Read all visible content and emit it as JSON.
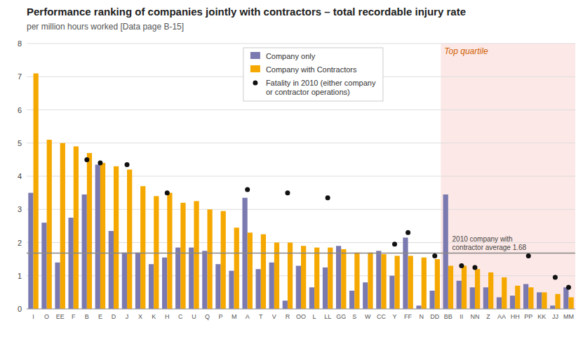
{
  "chart_data": {
    "type": "bar",
    "title": "Performance ranking of companies jointly with contractors – total recordable injury rate",
    "subtitle": "per million hours worked [Data page B-15]",
    "categories": [
      "I",
      "O",
      "EE",
      "F",
      "B",
      "E",
      "D",
      "J",
      "X",
      "K",
      "H",
      "C",
      "U",
      "Q",
      "P",
      "M",
      "A",
      "T",
      "V",
      "R",
      "OO",
      "L",
      "LL",
      "GG",
      "S",
      "W",
      "CC",
      "Y",
      "FF",
      "N",
      "DD",
      "BB",
      "II",
      "NN",
      "Z",
      "AA",
      "HH",
      "PP",
      "KK",
      "JJ",
      "MM"
    ],
    "series": [
      {
        "name": "Company only",
        "color": "#7b7ab0",
        "values": [
          3.5,
          2.6,
          1.4,
          2.75,
          3.45,
          4.35,
          2.35,
          1.7,
          1.7,
          1.35,
          1.55,
          1.85,
          1.85,
          1.75,
          1.35,
          1.15,
          3.35,
          1.2,
          1.4,
          0.25,
          1.3,
          0.65,
          1.25,
          1.9,
          0.55,
          0.8,
          1.75,
          1.0,
          2.15,
          0.1,
          0.55,
          3.45,
          0.85,
          0.65,
          0.65,
          0.35,
          0.4,
          0.75,
          0.5,
          0.1,
          0.65
        ]
      },
      {
        "name": "Company with Contractors",
        "color": "#f5a800",
        "values": [
          7.1,
          5.1,
          5.0,
          4.9,
          4.7,
          4.4,
          4.3,
          4.2,
          3.7,
          3.4,
          3.5,
          3.2,
          3.25,
          3.0,
          2.95,
          2.45,
          2.3,
          2.25,
          2.0,
          2.0,
          1.9,
          1.85,
          1.85,
          1.8,
          1.7,
          1.7,
          1.65,
          1.6,
          1.6,
          1.55,
          1.5,
          1.3,
          1.3,
          1.2,
          1.1,
          0.95,
          0.7,
          0.65,
          0.5,
          0.45,
          0.35
        ]
      },
      {
        "name": "Fatality in 2010 (either company\nor contractor operations)",
        "type": "scatter",
        "marker": "circle",
        "color": "#111111",
        "values": [
          null,
          null,
          null,
          null,
          4.5,
          4.4,
          null,
          4.35,
          null,
          null,
          3.5,
          null,
          null,
          null,
          null,
          null,
          3.6,
          null,
          null,
          3.5,
          null,
          null,
          3.35,
          null,
          null,
          null,
          null,
          1.95,
          2.3,
          null,
          1.6,
          null,
          1.3,
          1.25,
          null,
          null,
          null,
          1.6,
          null,
          0.95,
          0.65
        ]
      }
    ],
    "reference_line": {
      "value": 1.68,
      "label": "2010 company with\ncontractor average 1.68",
      "color": "#888888"
    },
    "shaded_region": {
      "from": "BB",
      "to": "MM",
      "label": "Top quartile",
      "color": "#fce8e6"
    },
    "ylim": [
      0,
      8
    ],
    "yticks": [
      0,
      1,
      2,
      3,
      4,
      5,
      6,
      7,
      8
    ],
    "grid": true,
    "legend": "top"
  }
}
